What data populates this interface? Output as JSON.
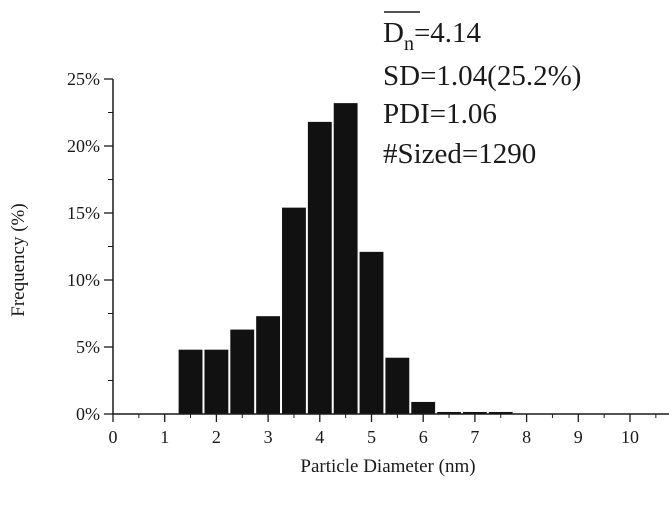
{
  "chart_data": {
    "type": "bar",
    "xlabel": "Particle Diameter (nm)",
    "ylabel": "Frequency (%)",
    "xlim": [
      0,
      10.8
    ],
    "ylim": [
      0,
      25
    ],
    "x_ticks": [
      "0",
      "1",
      "2",
      "3",
      "4",
      "5",
      "6",
      "7",
      "8",
      "9",
      "10"
    ],
    "y_ticks": [
      "0%",
      "5%",
      "10%",
      "15%",
      "20%",
      "25%"
    ],
    "bin_width": 0.5,
    "bins": [
      {
        "x": 1.5,
        "value": 4.8
      },
      {
        "x": 2.0,
        "value": 4.8
      },
      {
        "x": 2.5,
        "value": 6.3
      },
      {
        "x": 3.0,
        "value": 7.3
      },
      {
        "x": 3.5,
        "value": 15.4
      },
      {
        "x": 4.0,
        "value": 21.8
      },
      {
        "x": 4.5,
        "value": 23.2
      },
      {
        "x": 5.0,
        "value": 12.1
      },
      {
        "x": 5.5,
        "value": 4.2
      },
      {
        "x": 6.0,
        "value": 0.9
      },
      {
        "x": 6.5,
        "value": 0.15
      },
      {
        "x": 7.0,
        "value": 0.15
      },
      {
        "x": 7.5,
        "value": 0.15
      }
    ],
    "bar_color": "#111111",
    "grid": false,
    "annotations": {
      "dn_symbol": "D",
      "dn_subscript": "n",
      "dn_value": "=4.14",
      "sd": "SD=1.04(25.2%)",
      "pdi": "PDI=1.06",
      "sized": "#Sized=1290"
    }
  }
}
